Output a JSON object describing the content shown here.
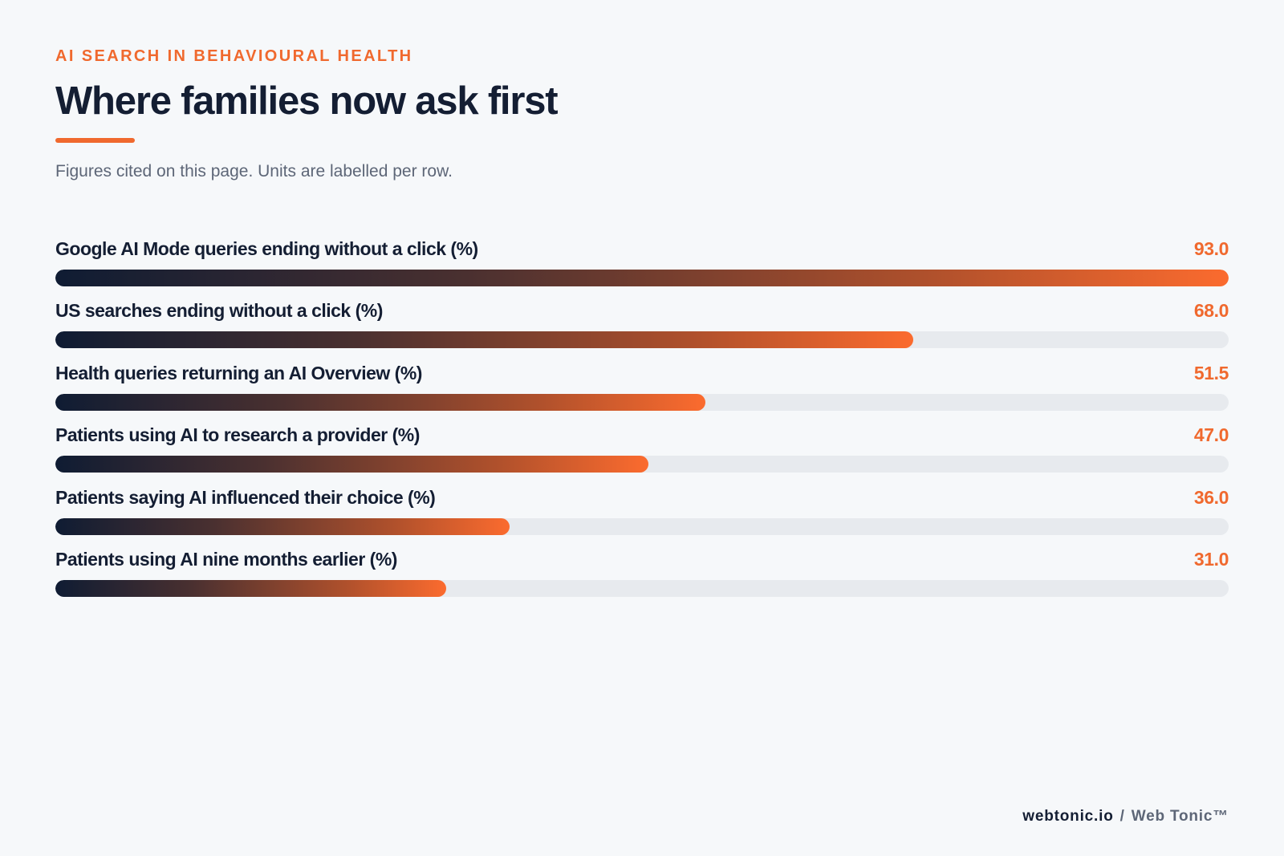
{
  "header": {
    "eyebrow": "AI SEARCH IN BEHAVIOURAL HEALTH",
    "title": "Where families now ask first",
    "subtitle": "Figures cited on this page. Units are labelled per row."
  },
  "chart_data": {
    "type": "bar",
    "orientation": "horizontal",
    "categories": [
      "Google AI Mode queries ending without a click (%)",
      "US searches ending without a click (%)",
      "Health queries returning an AI Overview (%)",
      "Patients using AI to research a provider (%)",
      "Patients saying AI influenced their choice (%)",
      "Patients using AI nine months earlier (%)"
    ],
    "values": [
      93.0,
      68.0,
      51.5,
      47.0,
      36.0,
      31.0
    ],
    "value_labels": [
      "93.0",
      "68.0",
      "51.5",
      "47.0",
      "36.0",
      "31.0"
    ],
    "xlim": [
      0,
      93.0
    ],
    "grid": false,
    "legend": "none",
    "colors": {
      "accent": "#f0692e",
      "bar_start": "#0f1c33",
      "bar_end": "#fb6b2e",
      "track": "#e7eaee"
    }
  },
  "footer": {
    "domain": "webtonic.io",
    "separator": "/",
    "brand": "Web Tonic™"
  }
}
